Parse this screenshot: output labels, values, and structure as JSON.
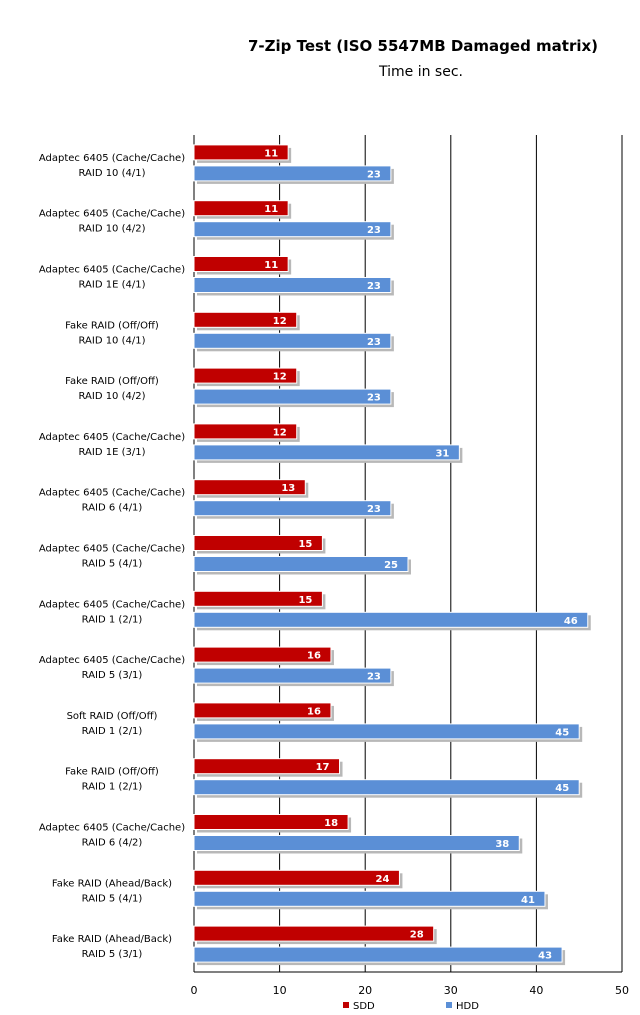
{
  "chart_data": {
    "type": "bar",
    "orientation": "horizontal",
    "title": "7-Zip Test (ISO 5547MB Damaged matrix)",
    "subtitle": "Time in sec.",
    "categories": [
      [
        "Adaptec 6405 (Cache/Cache)",
        "RAID 10 (4/1)"
      ],
      [
        "Adaptec 6405 (Cache/Cache)",
        "RAID 10 (4/2)"
      ],
      [
        "Adaptec 6405 (Cache/Cache)",
        "RAID 1E (4/1)"
      ],
      [
        "Fake RAID (Off/Off)",
        "RAID 10 (4/1)"
      ],
      [
        "Fake RAID (Off/Off)",
        "RAID 10 (4/2)"
      ],
      [
        "Adaptec 6405 (Cache/Cache)",
        "RAID 1E (3/1)"
      ],
      [
        "Adaptec 6405 (Cache/Cache)",
        "RAID 6 (4/1)"
      ],
      [
        "Adaptec 6405 (Cache/Cache)",
        "RAID 5 (4/1)"
      ],
      [
        "Adaptec 6405 (Cache/Cache)",
        "RAID 1 (2/1)"
      ],
      [
        "Adaptec 6405 (Cache/Cache)",
        "RAID 5 (3/1)"
      ],
      [
        "Soft RAID (Off/Off)",
        "RAID 1 (2/1)"
      ],
      [
        "Fake RAID (Off/Off)",
        "RAID 1 (2/1)"
      ],
      [
        "Adaptec 6405 (Cache/Cache)",
        "RAID 6 (4/2)"
      ],
      [
        "Fake RAID (Ahead/Back)",
        "RAID 5 (4/1)"
      ],
      [
        "Fake RAID (Ahead/Back)",
        "RAID 5 (3/1)"
      ]
    ],
    "series": [
      {
        "name": "SDD",
        "color": "#c00000",
        "values": [
          11,
          11,
          11,
          12,
          12,
          12,
          13,
          15,
          15,
          16,
          16,
          17,
          18,
          24,
          28
        ]
      },
      {
        "name": "HDD",
        "color": "#5b8fd6",
        "values": [
          23,
          23,
          23,
          23,
          23,
          31,
          23,
          25,
          46,
          23,
          45,
          45,
          38,
          41,
          43
        ]
      }
    ],
    "xlim": [
      0,
      50
    ],
    "xticks": [
      0,
      10,
      20,
      30,
      40,
      50
    ],
    "grid": true,
    "legend": "bottom"
  }
}
